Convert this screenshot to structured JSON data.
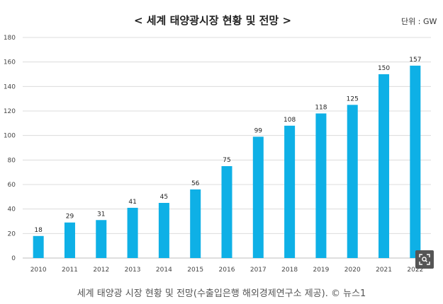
{
  "chart_data": {
    "type": "bar",
    "title": "< 세계  태양광시장  현황  및  전망 >",
    "unit": "단위 : GW",
    "categories": [
      "2010",
      "2011",
      "2012",
      "2013",
      "2014",
      "2015",
      "2016",
      "2017",
      "2018",
      "2019",
      "2020",
      "2021",
      "2022"
    ],
    "values": [
      18,
      29,
      31,
      41,
      45,
      56,
      75,
      99,
      108,
      118,
      125,
      150,
      157
    ],
    "ylim": [
      0,
      180
    ],
    "yticks": [
      0,
      20,
      40,
      60,
      80,
      100,
      120,
      140,
      160,
      180
    ],
    "grid": true,
    "bar_color": "#0eb0e6"
  },
  "caption": "세계 태양광 시장 현황 및 전망(수출입은행 해외경제연구소 제공). © 뉴스1",
  "zoom_icon": "zoom-icon"
}
